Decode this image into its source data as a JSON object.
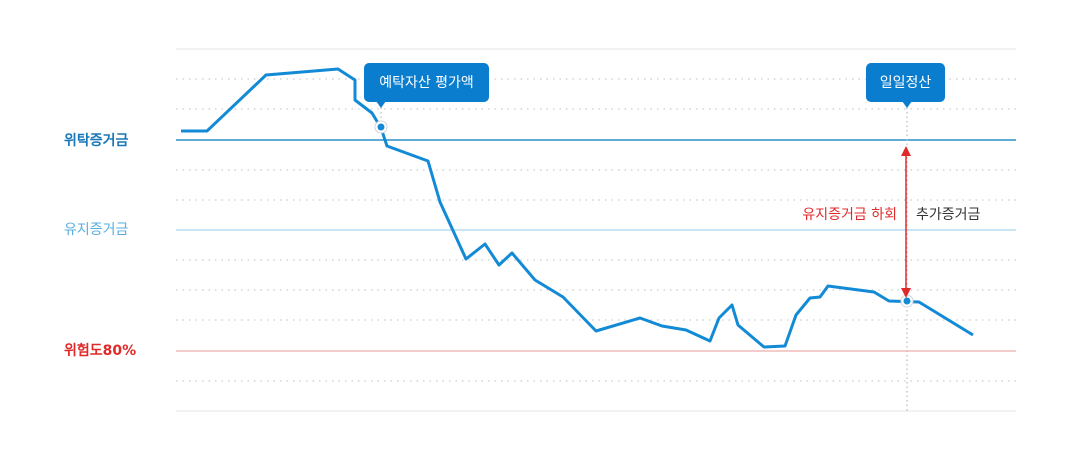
{
  "levels": {
    "deposit_margin": "위탁증거금",
    "maintenance_margin": "유지증거금",
    "risk": "위험도80%"
  },
  "callouts": {
    "asset_value": "예탁자산 평가액",
    "daily_settlement": "일일정산"
  },
  "annotations": {
    "below_maintenance": "유지증거금 하회",
    "additional_margin": "추가증거금"
  }
}
